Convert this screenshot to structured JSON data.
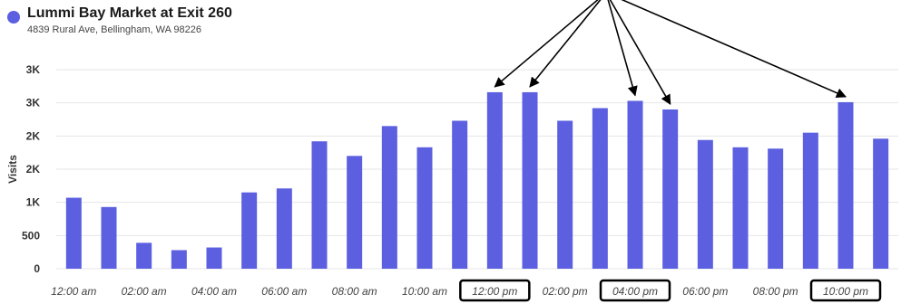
{
  "header": {
    "title": "Lummi Bay Market at Exit 260",
    "address": "4839 Rural Ave, Bellingham, WA 98226"
  },
  "colors": {
    "bar": "#5b5fe0",
    "legend_dot": "#5b5fe0",
    "grid": "#e6e6e6",
    "arrow": "#000000",
    "highlight_box": "#000000"
  },
  "chart_data": {
    "type": "bar",
    "ylabel": "Visits",
    "xlabel": "",
    "ylim": [
      0,
      3000
    ],
    "y_ticks": [
      {
        "value": 0,
        "label": "0"
      },
      {
        "value": 500,
        "label": "500"
      },
      {
        "value": 1000,
        "label": "1K"
      },
      {
        "value": 1500,
        "label": "2K"
      },
      {
        "value": 2000,
        "label": "2K"
      },
      {
        "value": 2500,
        "label": "3K"
      },
      {
        "value": 3000,
        "label": "3K"
      }
    ],
    "grid": true,
    "categories": [
      "12:00 am",
      "01:00 am",
      "02:00 am",
      "03:00 am",
      "04:00 am",
      "05:00 am",
      "06:00 am",
      "07:00 am",
      "08:00 am",
      "09:00 am",
      "10:00 am",
      "11:00 am",
      "12:00 pm",
      "01:00 pm",
      "02:00 pm",
      "03:00 pm",
      "04:00 pm",
      "05:00 pm",
      "06:00 pm",
      "07:00 pm",
      "08:00 pm",
      "09:00 pm",
      "10:00 pm",
      "11:00 pm"
    ],
    "values": [
      1070,
      930,
      390,
      280,
      320,
      1150,
      1210,
      1920,
      1700,
      2150,
      1830,
      2230,
      2660,
      2660,
      2230,
      2420,
      2530,
      2400,
      1940,
      1830,
      1810,
      2050,
      2510,
      1960
    ],
    "x_tick_labels": [
      {
        "index": 0,
        "label": "12:00 am"
      },
      {
        "index": 2,
        "label": "02:00 am"
      },
      {
        "index": 4,
        "label": "04:00 am"
      },
      {
        "index": 6,
        "label": "06:00 am"
      },
      {
        "index": 8,
        "label": "08:00 am"
      },
      {
        "index": 10,
        "label": "10:00 am"
      },
      {
        "index": 12,
        "label": "12:00 pm"
      },
      {
        "index": 14,
        "label": "02:00 pm"
      },
      {
        "index": 16,
        "label": "04:00 pm"
      },
      {
        "index": 18,
        "label": "06:00 pm"
      },
      {
        "index": 20,
        "label": "08:00 pm"
      },
      {
        "index": 22,
        "label": "10:00 pm"
      }
    ],
    "highlighted_ticks": [
      "12:00 pm",
      "04:00 pm",
      "10:00 pm"
    ],
    "arrow_targets": [
      "12:00 pm",
      "01:00 pm",
      "04:00 pm",
      "05:00 pm",
      "10:00 pm"
    ]
  }
}
